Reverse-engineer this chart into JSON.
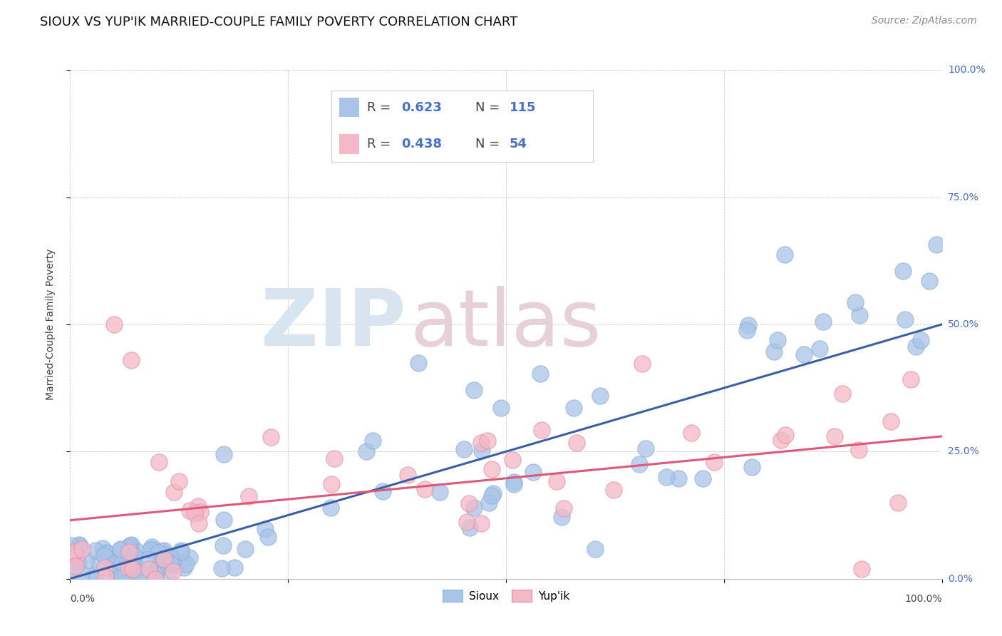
{
  "title": "SIOUX VS YUP'IK MARRIED-COUPLE FAMILY POVERTY CORRELATION CHART",
  "source": "Source: ZipAtlas.com",
  "ylabel": "Married-Couple Family Poverty",
  "legend_label1": "Sioux",
  "legend_label2": "Yup'ik",
  "r1": 0.623,
  "n1": 115,
  "r2": 0.438,
  "n2": 54,
  "color_blue": "#a8c4e8",
  "color_pink": "#f4b8c8",
  "line_blue": "#3a5fa8",
  "line_pink": "#e05878",
  "text_blue": "#4a6fc8",
  "text_dark": "#444444",
  "watermark_color": "#d8e4f0",
  "watermark_color2": "#e8d0d8",
  "ytick_vals": [
    0.0,
    0.25,
    0.5,
    0.75,
    1.0
  ],
  "ytick_labels": [
    "0.0%",
    "25.0%",
    "50.0%",
    "75.0%",
    "100.0%"
  ],
  "background": "#ffffff",
  "grid_color": "#cccccc",
  "title_fontsize": 13,
  "source_fontsize": 10
}
